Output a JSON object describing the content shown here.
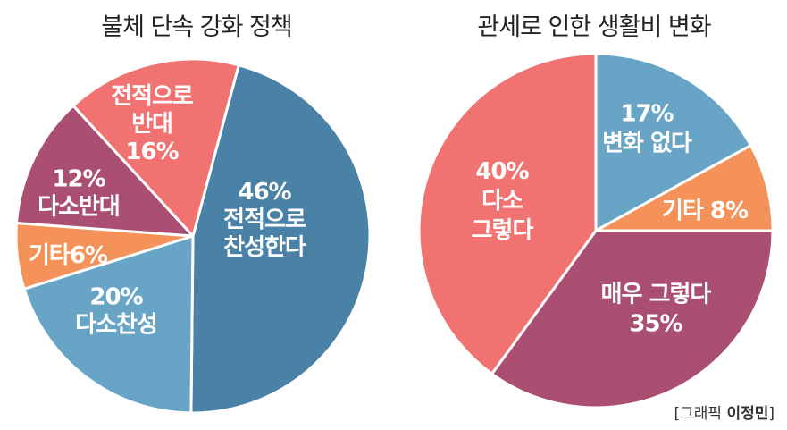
{
  "chart_data": [
    {
      "type": "pie",
      "title": "불체 단속 강화 정책",
      "start_angle_deg": 15,
      "slices": [
        {
          "lines": [
            "46%",
            "전적으로",
            "찬성한다"
          ],
          "value": 46,
          "color": "#4a81a6"
        },
        {
          "lines": [
            "20%",
            "다소찬성"
          ],
          "value": 20,
          "color": "#67a4c6"
        },
        {
          "lines": [
            "기타6%"
          ],
          "value": 6,
          "color": "#f4925a"
        },
        {
          "lines": [
            "12%",
            "다소반대"
          ],
          "value": 12,
          "color": "#aa4e72"
        },
        {
          "lines": [
            "전적으로",
            "반대",
            "16%"
          ],
          "value": 16,
          "color": "#f17371"
        }
      ]
    },
    {
      "type": "pie",
      "title": "관세로 인한 생활비 변화",
      "start_angle_deg": 0,
      "slices": [
        {
          "lines": [
            "17%",
            "변화 없다"
          ],
          "value": 17,
          "color": "#67a4c6"
        },
        {
          "lines": [
            "기타 8%"
          ],
          "value": 8,
          "color": "#f4925a"
        },
        {
          "lines": [
            "매우 그렇다",
            "35%"
          ],
          "value": 35,
          "color": "#aa4e72"
        },
        {
          "lines": [
            "40%",
            "다소",
            "그렇다"
          ],
          "value": 40,
          "color": "#f17371"
        }
      ]
    }
  ],
  "credit": {
    "prefix": "[그래픽 ",
    "author": "이정민",
    "suffix": "]"
  }
}
